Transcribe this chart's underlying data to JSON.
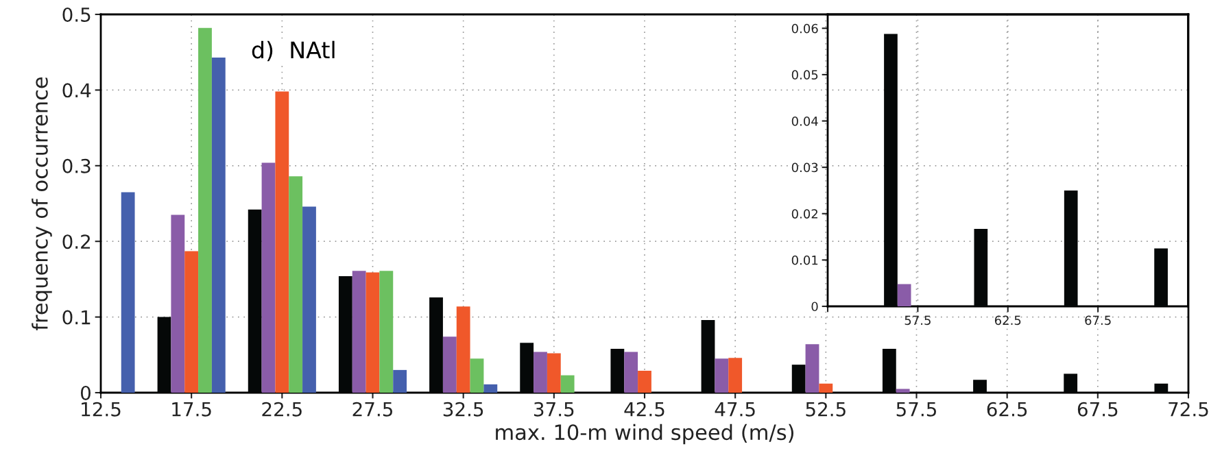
{
  "chart_data": [
    {
      "type": "bar",
      "xlabel": "max. 10-m wind speed (m/s)",
      "ylabel": "frequency of occurrence",
      "annotations": [
        "d)  NAtl"
      ],
      "x": [
        12.5,
        17.5,
        22.5,
        27.5,
        32.5,
        37.5,
        42.5,
        47.5,
        52.5,
        57.5,
        62.5,
        67.5,
        72.5
      ],
      "series": [
        {
          "color": "#050808",
          "values": [
            0,
            0.1,
            0.242,
            0.154,
            0.126,
            0.066,
            0.058,
            0.096,
            0.037,
            0.058,
            0.017,
            0.025,
            0.012
          ]
        },
        {
          "color": "#8a5ca8",
          "values": [
            0,
            0.235,
            0.304,
            0.161,
            0.074,
            0.054,
            0.054,
            0.045,
            0.064,
            0.005,
            0,
            0,
            0
          ]
        },
        {
          "color": "#f0582a",
          "values": [
            0,
            0.187,
            0.398,
            0.159,
            0.114,
            0.052,
            0.029,
            0.046,
            0.012,
            0,
            0,
            0,
            0
          ]
        },
        {
          "color": "#6cc060",
          "values": [
            0,
            0.482,
            0.286,
            0.161,
            0.045,
            0.023,
            0,
            0,
            0,
            0,
            0,
            0,
            0
          ]
        },
        {
          "color": "#4560ad",
          "values": [
            0.265,
            0.443,
            0.246,
            0.03,
            0.011,
            0,
            0,
            0,
            0,
            0,
            0,
            0,
            0
          ]
        }
      ],
      "xlim": [
        12.5,
        72.5
      ],
      "xticks": [
        12.5,
        17.5,
        22.5,
        27.5,
        32.5,
        37.5,
        42.5,
        47.5,
        52.5,
        57.5,
        62.5,
        67.5,
        72.5
      ],
      "ylim": [
        0,
        0.5
      ],
      "yticks": [
        0,
        0.1,
        0.2,
        0.3,
        0.4,
        0.5
      ],
      "grid": true
    },
    {
      "type": "bar",
      "x": [
        57.5,
        62.5,
        67.5,
        72.5
      ],
      "series": [
        {
          "color": "#050808",
          "values": [
            0.0588,
            0.0167,
            0.025,
            0.0125
          ]
        },
        {
          "color": "#8a5ca8",
          "values": [
            0.0048,
            0,
            0,
            0
          ]
        },
        {
          "color": "#f0582a",
          "values": [
            0,
            0,
            0,
            0
          ]
        },
        {
          "color": "#6cc060",
          "values": [
            0,
            0,
            0,
            0
          ]
        },
        {
          "color": "#4560ad",
          "values": [
            0,
            0,
            0,
            0
          ]
        }
      ],
      "xlim": [
        52.5,
        72.5
      ],
      "xticks": [
        {
          "value": 52.5,
          "label": null
        },
        57.5,
        62.5,
        67.5
      ],
      "ylim": [
        0,
        0.063
      ],
      "yticks": [
        0,
        0.01,
        0.02,
        0.03,
        0.04,
        0.05,
        0.06
      ],
      "grid": "x"
    }
  ]
}
